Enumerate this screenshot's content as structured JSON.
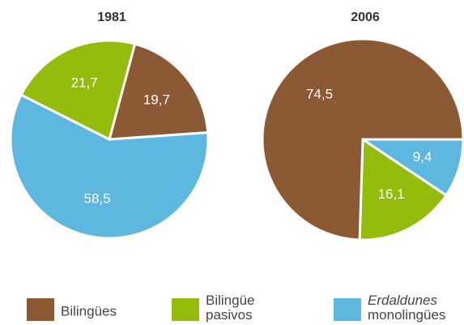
{
  "chart_data": [
    {
      "type": "pie",
      "title": "1981",
      "categories": [
        "Bilingües",
        "Bilingüe pasivos",
        "Erdaldunes monolingües"
      ],
      "values": [
        19.7,
        21.7,
        58.5
      ],
      "value_labels": [
        "19,7",
        "21,7",
        "58,5"
      ],
      "colors": [
        "#8b5a35",
        "#93bc0c",
        "#5db7de"
      ]
    },
    {
      "type": "pie",
      "title": "2006",
      "categories": [
        "Bilingües",
        "Bilingüe pasivos",
        "Erdaldunes monolingües"
      ],
      "values": [
        74.5,
        16.1,
        9.4
      ],
      "value_labels": [
        "74,5",
        "16,1",
        "9,4"
      ],
      "colors": [
        "#8b5a35",
        "#93bc0c",
        "#5db7de"
      ]
    }
  ]
}
